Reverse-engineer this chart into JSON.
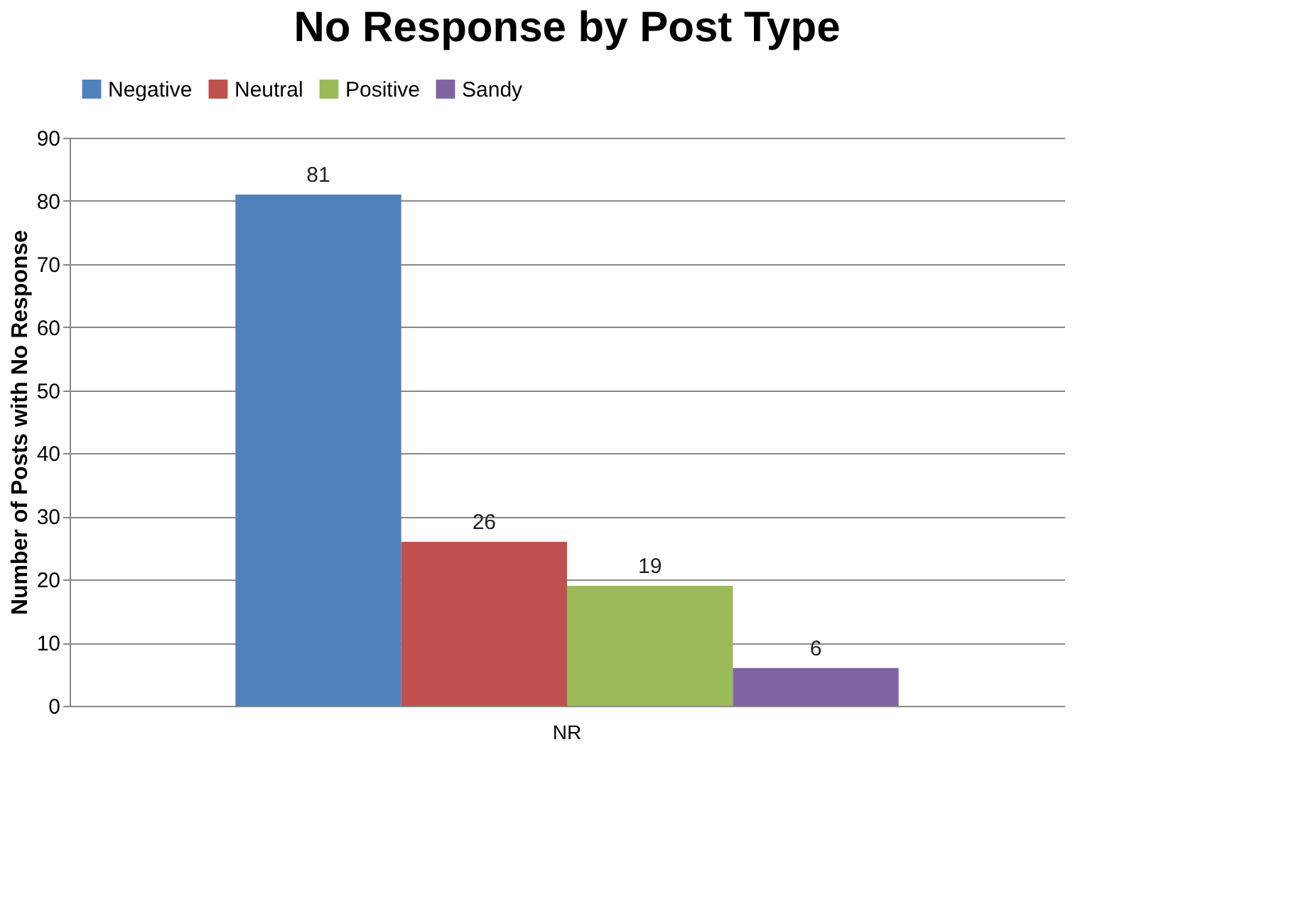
{
  "chart_data": {
    "type": "bar",
    "title": "No Response by Post Type",
    "ylabel": "Number of Posts with No Response",
    "categories": [
      "NR"
    ],
    "series": [
      {
        "name": "Negative",
        "color": "#4f81bd",
        "values": [
          81
        ]
      },
      {
        "name": "Neutral",
        "color": "#c0504d",
        "values": [
          26
        ]
      },
      {
        "name": "Positive",
        "color": "#9bbb59",
        "values": [
          19
        ]
      },
      {
        "name": "Sandy",
        "color": "#8064a2",
        "values": [
          6
        ]
      }
    ],
    "ylim": [
      0,
      90
    ],
    "yticks": [
      0,
      10,
      20,
      30,
      40,
      50,
      60,
      70,
      80,
      90
    ],
    "grid": "y",
    "legend": "top",
    "data_labels": true
  }
}
